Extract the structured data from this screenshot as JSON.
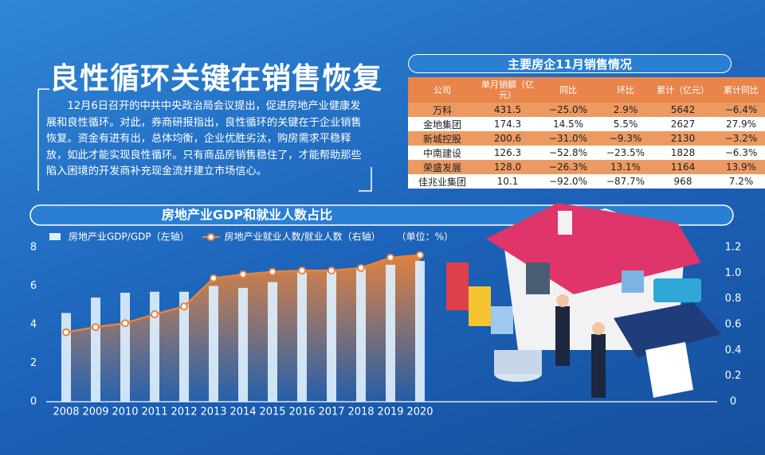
{
  "header": {
    "title": "良性循环关键在销售恢复",
    "intro": "12月6日召开的中共中央政治局会议提出，促进房地产业健康发展和良性循环。对此，券商研报指出，良性循环的关键在于企业销售恢复。资金有进有出，总体均衡，企业优胜劣汰，购房需求平稳释放，如此才能实现良性循环。只有商品房销售稳住了，才能帮助那些陷入困境的开发商补充现金流并建立市场信心。"
  },
  "table": {
    "title": "主要房企11月销售情况",
    "columns": [
      "公司",
      "单月销额（亿元）",
      "同比",
      "环比",
      "累计（亿元）",
      "累计同比"
    ],
    "rows": [
      [
        "万科",
        "431.5",
        "−25.0%",
        "2.9%",
        "5642",
        "−6.4%"
      ],
      [
        "金地集团",
        "174.3",
        "14.5%",
        "5.5%",
        "2627",
        "27.9%"
      ],
      [
        "新城控股",
        "200.6",
        "−31.0%",
        "−9.3%",
        "2130",
        "−3.2%"
      ],
      [
        "中南建设",
        "126.3",
        "−52.8%",
        "−23.5%",
        "1828",
        "−6.3%"
      ],
      [
        "荣盛发展",
        "128.0",
        "−26.3%",
        "13.1%",
        "1164",
        "13.9%"
      ],
      [
        "佳兆业集团",
        "10.1",
        "−92.0%",
        "−87.7%",
        "968",
        "7.2%"
      ]
    ]
  },
  "chart_data": {
    "type": "combo",
    "title": "房地产业GDP和就业人数占比",
    "unit_note": "（单位：%）",
    "categories": [
      "2008",
      "2009",
      "2010",
      "2011",
      "2012",
      "2013",
      "2014",
      "2015",
      "2016",
      "2017",
      "2018",
      "2019",
      "2020"
    ],
    "series": [
      {
        "name": "房地产业GDP/GDP（左轴）",
        "type": "bar",
        "color": "#dceffd",
        "values": [
          4.6,
          5.4,
          5.65,
          5.7,
          5.7,
          6.0,
          5.9,
          6.2,
          6.7,
          6.8,
          6.9,
          7.1,
          7.3
        ]
      },
      {
        "name": "房地产业就业人数/就业人数（右轴）",
        "type": "line",
        "axis": "y2",
        "color": "#e8833a",
        "values": [
          0.54,
          0.58,
          0.61,
          0.68,
          0.74,
          0.96,
          0.99,
          1.01,
          1.02,
          1.02,
          1.04,
          1.12,
          1.14
        ]
      }
    ],
    "ylim": [
      0,
      8
    ],
    "yticks": [
      0,
      2,
      4,
      6,
      8
    ],
    "y2lim": [
      0,
      1.2
    ],
    "y2ticks": [
      0,
      0.2,
      0.4,
      0.6,
      0.8,
      {
        "value": 1,
        "label": "1.0"
      },
      1.2
    ]
  }
}
